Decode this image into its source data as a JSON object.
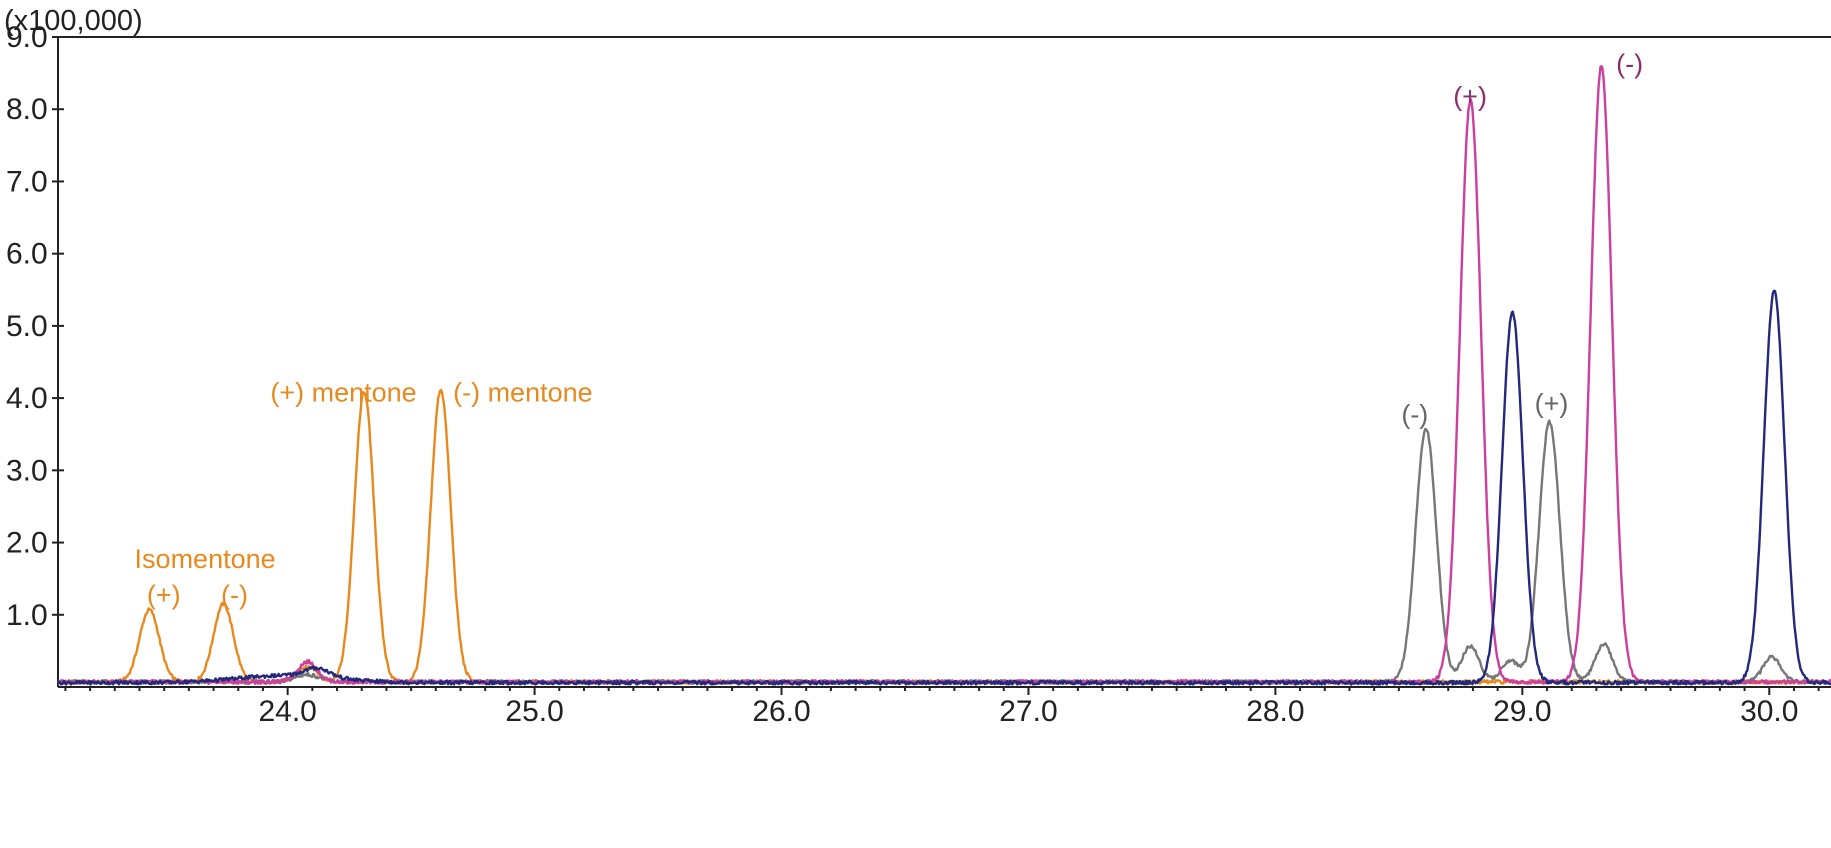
{
  "chart_data": {
    "type": "line",
    "title": "",
    "xlabel": "",
    "ylabel": "",
    "y_multiplier_label": "(x100,000)",
    "xlim": [
      23.07,
      30.25
    ],
    "ylim": [
      0,
      9.0
    ],
    "y_ticks": [
      {
        "value": 1.0,
        "label": "1.0"
      },
      {
        "value": 2.0,
        "label": "2.0"
      },
      {
        "value": 3.0,
        "label": "3.0"
      },
      {
        "value": 4.0,
        "label": "4.0"
      },
      {
        "value": 5.0,
        "label": "5.0"
      },
      {
        "value": 6.0,
        "label": "6.0"
      },
      {
        "value": 7.0,
        "label": "7.0"
      },
      {
        "value": 8.0,
        "label": "8.0"
      },
      {
        "value": 9.0,
        "label": "9.0"
      }
    ],
    "x_ticks": [
      {
        "value": 24.0,
        "label": "24.0"
      },
      {
        "value": 25.0,
        "label": "25.0"
      },
      {
        "value": 26.0,
        "label": "26.0"
      },
      {
        "value": 27.0,
        "label": "27.0"
      },
      {
        "value": 28.0,
        "label": "28.0"
      },
      {
        "value": 29.0,
        "label": "29.0"
      },
      {
        "value": 30.0,
        "label": "30.0"
      }
    ],
    "grid": false,
    "legend": "none",
    "series": [
      {
        "color": "#E8891E",
        "baseline": 0.07,
        "peaks": [
          {
            "rt": 23.44,
            "height": 1.0,
            "width": 0.04
          },
          {
            "rt": 23.74,
            "height": 1.08,
            "width": 0.04
          },
          {
            "rt": 24.08,
            "height": 0.22,
            "width": 0.04
          },
          {
            "rt": 24.31,
            "height": 4.02,
            "width": 0.04
          },
          {
            "rt": 24.62,
            "height": 4.05,
            "width": 0.04
          }
        ]
      },
      {
        "color": "#777777",
        "baseline": 0.07,
        "peaks": [
          {
            "rt": 24.08,
            "height": 0.1,
            "width": 0.05
          },
          {
            "rt": 28.61,
            "height": 3.5,
            "width": 0.042
          },
          {
            "rt": 28.79,
            "height": 0.5,
            "width": 0.035
          },
          {
            "rt": 28.95,
            "height": 0.3,
            "width": 0.035
          },
          {
            "rt": 29.11,
            "height": 3.6,
            "width": 0.042
          },
          {
            "rt": 29.33,
            "height": 0.52,
            "width": 0.035
          },
          {
            "rt": 30.01,
            "height": 0.35,
            "width": 0.035
          }
        ]
      },
      {
        "color": "#CC3F9F",
        "baseline": 0.07,
        "peaks": [
          {
            "rt": 24.08,
            "height": 0.28,
            "width": 0.04
          },
          {
            "rt": 28.79,
            "height": 8.05,
            "width": 0.043
          },
          {
            "rt": 29.32,
            "height": 8.52,
            "width": 0.043
          }
        ]
      },
      {
        "color": "#23297C",
        "baseline": 0.06,
        "peaks": [
          {
            "rt": 24.0,
            "height": 0.1,
            "width": 0.2
          },
          {
            "rt": 24.12,
            "height": 0.12,
            "width": 0.05
          },
          {
            "rt": 28.96,
            "height": 5.12,
            "width": 0.042
          },
          {
            "rt": 30.02,
            "height": 5.42,
            "width": 0.042
          }
        ]
      }
    ],
    "annotations": [
      {
        "text": "Isomentone",
        "color": "#E8891E",
        "x": 23.38,
        "y": 1.65
      },
      {
        "text": "(+)",
        "color": "#E8891E",
        "x": 23.43,
        "y": 1.15
      },
      {
        "text": "(-)",
        "color": "#E8891E",
        "x": 23.73,
        "y": 1.15
      },
      {
        "text": "(+) mentone",
        "color": "#E8891E",
        "x": 23.93,
        "y": 3.95
      },
      {
        "text": "(-) mentone",
        "color": "#E8891E",
        "x": 24.67,
        "y": 3.95
      },
      {
        "text": "(-)",
        "color": "#666666",
        "x": 28.51,
        "y": 3.65
      },
      {
        "text": "(+)",
        "color": "#666666",
        "x": 29.05,
        "y": 3.8
      },
      {
        "text": "(+)",
        "color": "#8A2F6E",
        "x": 28.72,
        "y": 8.05
      },
      {
        "text": "(-)",
        "color": "#8A2F6E",
        "x": 29.38,
        "y": 8.5
      }
    ]
  }
}
